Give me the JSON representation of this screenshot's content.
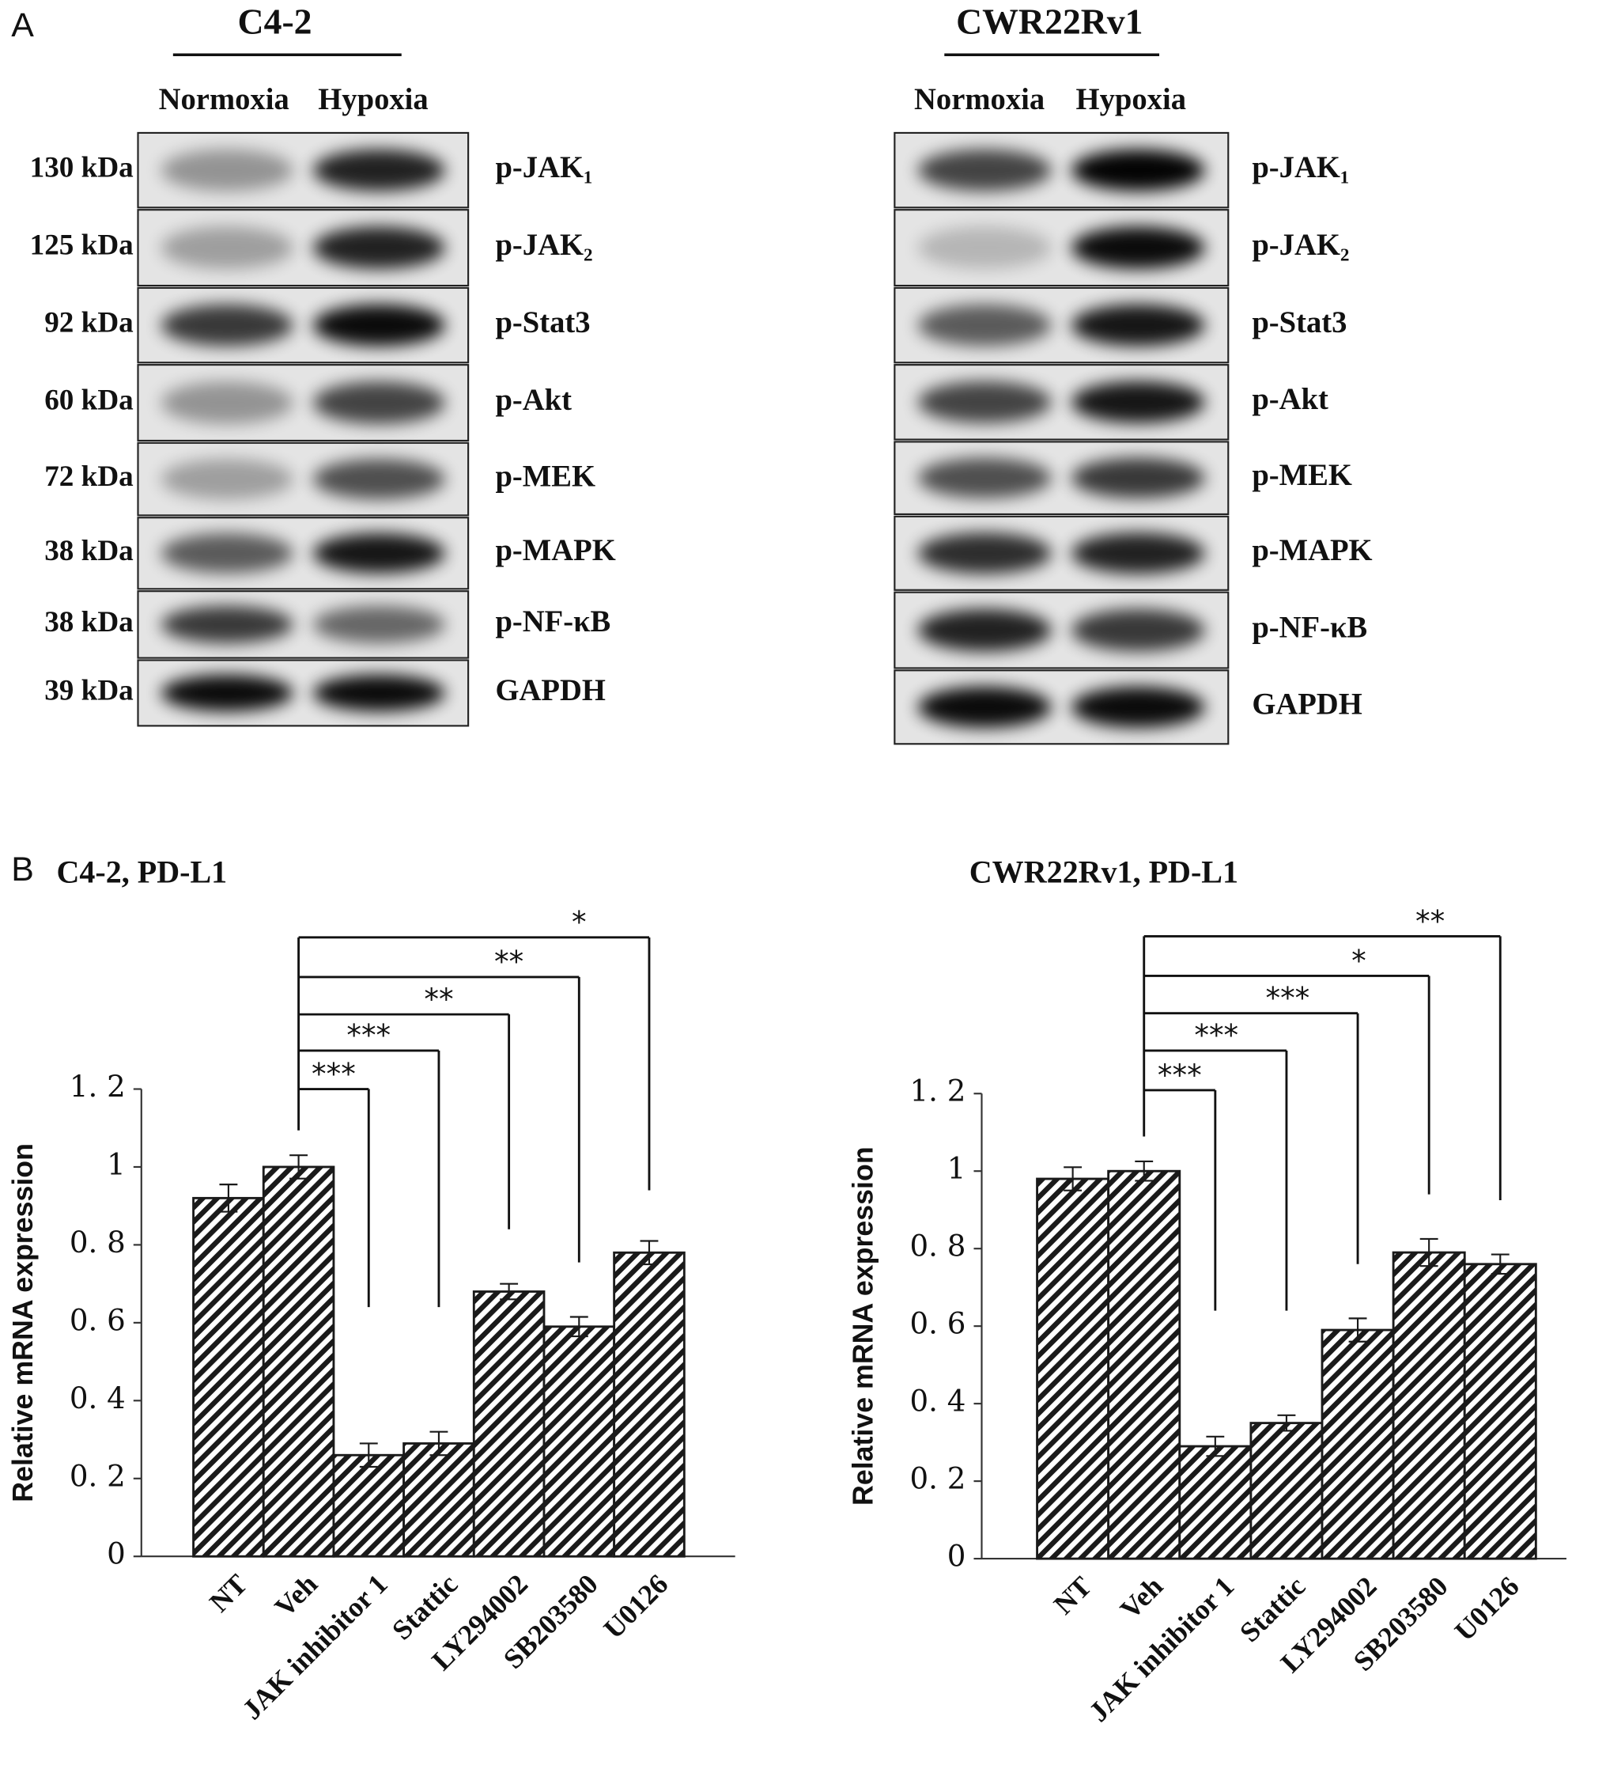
{
  "panel_labels": [
    "A",
    "B"
  ],
  "blots": [
    {
      "title": "C4-2",
      "lanes": [
        "Normoxia",
        "Hypoxia"
      ],
      "rows": [
        {
          "size": "130 kDa",
          "protein": "p-JAK₁"
        },
        {
          "size": "125 kDa",
          "protein": "p-JAK₂"
        },
        {
          "size": "92 kDa",
          "protein": "p-Stat3"
        },
        {
          "size": "60 kDa",
          "protein": "p-Akt"
        },
        {
          "size": "72 kDa",
          "protein": "p-MEK"
        },
        {
          "size": "38 kDa",
          "protein": "p-MAPK"
        },
        {
          "size": "38 kDa",
          "protein": "p-NF-κB"
        },
        {
          "size": "39 kDa",
          "protein": "GAPDH"
        }
      ]
    },
    {
      "title": "CWR22Rv1",
      "lanes": [
        "Normoxia",
        "Hypoxia"
      ],
      "rows": [
        {
          "protein": "p-JAK₁"
        },
        {
          "protein": "p-JAK₂"
        },
        {
          "protein": "p-Stat3"
        },
        {
          "protein": "p-Akt"
        },
        {
          "protein": "p-MEK"
        },
        {
          "protein": "p-MAPK"
        },
        {
          "protein": "p-NF-κB"
        },
        {
          "protein": "GAPDH"
        }
      ]
    }
  ],
  "chart_data": [
    {
      "type": "bar",
      "title": "C4-2, PD-L1",
      "y_label": "Relative mRNA expression",
      "categories": [
        "NT",
        "Veh",
        "JAK inhibitor 1",
        "Stattic",
        "LY294002",
        "SB203580",
        "U0126"
      ],
      "values": [
        0.92,
        1.0,
        0.26,
        0.29,
        0.68,
        0.59,
        0.78
      ],
      "errors": [
        0.035,
        0.03,
        0.03,
        0.03,
        0.02,
        0.025,
        0.03
      ],
      "significance": [
        null,
        null,
        "***",
        "***",
        "**",
        "**",
        "*"
      ],
      "color": "#1a1a1a",
      "ylim": [
        0,
        1.2
      ],
      "yticks": [
        0,
        {
          "value": 0.2,
          "label": "0. 2"
        },
        {
          "value": 0.4,
          "label": "0. 4"
        },
        {
          "value": 0.6,
          "label": "0. 6"
        },
        {
          "value": 0.8,
          "label": "0. 8"
        },
        1,
        {
          "value": 1.2,
          "label": "1. 2"
        }
      ]
    },
    {
      "type": "bar",
      "title": "CWR22Rv1, PD-L1",
      "y_label": "Relative mRNA expression",
      "categories": [
        "NT",
        "Veh",
        "JAK inhibitor 1",
        "Stattic",
        "LY294002",
        "SB203580",
        "U0126"
      ],
      "values": [
        0.98,
        1.0,
        0.29,
        0.35,
        0.59,
        0.79,
        0.76
      ],
      "errors": [
        0.03,
        0.025,
        0.025,
        0.02,
        0.03,
        0.035,
        0.025
      ],
      "significance": [
        null,
        null,
        "***",
        "***",
        "***",
        "*",
        "**"
      ],
      "color": "#1a1a1a",
      "ylim": [
        0,
        1.2
      ],
      "yticks": [
        0,
        {
          "value": 0.2,
          "label": "0. 2"
        },
        {
          "value": 0.4,
          "label": "0. 4"
        },
        {
          "value": 0.6,
          "label": "0. 6"
        },
        {
          "value": 0.8,
          "label": "0. 8"
        },
        1,
        {
          "value": 1.2,
          "label": "1. 2"
        }
      ]
    }
  ]
}
